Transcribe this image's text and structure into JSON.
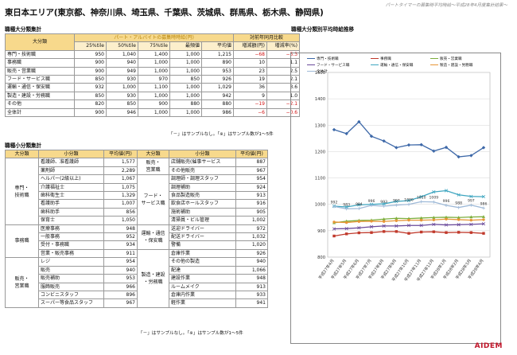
{
  "header": {
    "subtitle": "パートタイマーの募集時平均時給～平成28年4月度集計結果～",
    "region_title": "東日本エリア(東京都、神奈川県、埼玉県、千葉県、茨城県、群馬県、栃木県、静岡県)"
  },
  "large_table": {
    "section_title": "職種大分類集計",
    "h_category": "大分類",
    "h_wage_group": "パート・アルバイトの募集時時給(円)",
    "h_yoy_group": "対前年同月比較",
    "sub_headers": [
      "25%tile",
      "50%tile",
      "75%tile",
      "最頻値",
      "平均値",
      "増減額(円)",
      "増減率(%)"
    ],
    "rows": [
      {
        "name": "専門・技術職",
        "p25": "950",
        "p50": "1,040",
        "p75": "1,400",
        "mode": "1,000",
        "avg": "1,215",
        "diff": "−68",
        "rate": "−5.3"
      },
      {
        "name": "事務職",
        "p25": "900",
        "p50": "940",
        "p75": "1,000",
        "mode": "1,000",
        "avg": "890",
        "diff": "10",
        "rate": "1.1"
      },
      {
        "name": "販売・営業職",
        "p25": "900",
        "p50": "949",
        "p75": "1,000",
        "mode": "1,000",
        "avg": "953",
        "diff": "23",
        "rate": "2.5"
      },
      {
        "name": "フード・サービス職",
        "p25": "850",
        "p50": "930",
        "p75": "970",
        "mode": "850",
        "avg": "926",
        "diff": "19",
        "rate": "2.1"
      },
      {
        "name": "運輸・通信・保安職",
        "p25": "932",
        "p50": "1,000",
        "p75": "1,100",
        "mode": "1,000",
        "avg": "1,029",
        "diff": "36",
        "rate": "3.6"
      },
      {
        "name": "製造・建設・労務職",
        "p25": "850",
        "p50": "930",
        "p75": "1,000",
        "mode": "1,000",
        "avg": "942",
        "diff": "9",
        "rate": "1.0"
      },
      {
        "name": "その他",
        "p25": "820",
        "p50": "850",
        "p75": "900",
        "mode": "880",
        "avg": "880",
        "diff": "−19",
        "rate": "−2.1"
      },
      {
        "name": "全体計",
        "p25": "900",
        "p50": "946",
        "p75": "1,000",
        "mode": "1,000",
        "avg": "986",
        "diff": "−6",
        "rate": "−0.6"
      }
    ],
    "note": "「－」はサンプルなし。「※」はサンプル数が1～5件"
  },
  "small_table": {
    "section_title": "職種小分類集計",
    "h_large": "大分類",
    "h_small": "小分類",
    "h_avg": "平均値(円)",
    "left_groups": [
      {
        "name": "専門・\n技術職",
        "items": [
          {
            "name": "看護師、准看護師",
            "avg": "1,577"
          },
          {
            "name": "薬剤師",
            "avg": "2,289"
          },
          {
            "name": "ヘルパー(2級以上)",
            "avg": "1,067"
          },
          {
            "name": "介護福祉士",
            "avg": "1,075"
          },
          {
            "name": "歯科衛生士",
            "avg": "1,329"
          },
          {
            "name": "看護助手",
            "avg": "1,007"
          },
          {
            "name": "歯科助手",
            "avg": "856"
          },
          {
            "name": "保育士",
            "avg": "1,050"
          }
        ]
      },
      {
        "name": "事務職",
        "items": [
          {
            "name": "医療事務",
            "avg": "948"
          },
          {
            "name": "一般事務",
            "avg": "952"
          },
          {
            "name": "受付・事務職",
            "avg": "934"
          },
          {
            "name": "営業・販売事務",
            "avg": "911"
          }
        ]
      },
      {
        "name": "販売・\n営業職",
        "items": [
          {
            "name": "レジ",
            "avg": "954"
          },
          {
            "name": "販売",
            "avg": "940"
          },
          {
            "name": "販売補助",
            "avg": "953"
          },
          {
            "name": "服飾販売",
            "avg": "966"
          },
          {
            "name": "コンビニスタッフ",
            "avg": "896"
          },
          {
            "name": "スーパー等食品スタッフ",
            "avg": "967"
          }
        ]
      }
    ],
    "right_groups": [
      {
        "name": "販売・\n営業職",
        "items": [
          {
            "name": "店舗販売(催事サービス",
            "avg": "887"
          },
          {
            "name": "その他販売",
            "avg": "967"
          }
        ]
      },
      {
        "name": "フード・\nサービス職",
        "items": [
          {
            "name": "調理師・調理スタッフ",
            "avg": "954"
          },
          {
            "name": "調理補助",
            "avg": "924"
          },
          {
            "name": "食品製造販売",
            "avg": "913"
          },
          {
            "name": "飲食店ホールスタッフ",
            "avg": "916"
          },
          {
            "name": "施術補助",
            "avg": "905"
          },
          {
            "name": "清掃員・ビル管理",
            "avg": "1,002"
          }
        ]
      },
      {
        "name": "運輸・通信\n・保安職",
        "items": [
          {
            "name": "送迎ドライバー",
            "avg": "972"
          },
          {
            "name": "配送ドライバー",
            "avg": "1,032"
          },
          {
            "name": "警備",
            "avg": "1,020"
          }
        ]
      },
      {
        "name": "製造・建設\n・労務職",
        "items": [
          {
            "name": "倉庫作業",
            "avg": "926"
          },
          {
            "name": "その他の製造",
            "avg": "940"
          },
          {
            "name": "配達",
            "avg": "1,066"
          },
          {
            "name": "建設作業",
            "avg": "948"
          },
          {
            "name": "ルームメイク",
            "avg": "913"
          },
          {
            "name": "倉庫内作業",
            "avg": "933"
          },
          {
            "name": "軽作業",
            "avg": "941"
          }
        ]
      }
    ],
    "note": "「－」はサンプルなし。「※」はサンプル数が1～5件"
  },
  "chart_section_title": "職種大分類別平均時給推移",
  "logo": "AIDEM",
  "chart_data": {
    "type": "line",
    "categories": [
      "平成27年4月",
      "平成27年5月",
      "平成27年6月",
      "平成27年7月",
      "平成27年8月",
      "平成27年9月",
      "平成27年10月",
      "平成27年11月",
      "平成27年12月",
      "平成28年1月",
      "平成28年2月",
      "平成28年3月",
      "平成28年4月"
    ],
    "ylim": [
      800,
      1500
    ],
    "yticks": [
      800,
      900,
      1000,
      1100,
      1200,
      1300,
      1400,
      1500
    ],
    "series": [
      {
        "name": "専門・技術職",
        "color": "#3d68a8",
        "marker": "diamond",
        "values": [
          1283,
          1268,
          1313,
          1258,
          1240,
          1215,
          1225,
          1226,
          1202,
          1216,
          1180,
          1185,
          1215
        ]
      },
      {
        "name": "事務職",
        "color": "#c0392b",
        "marker": "square",
        "values": [
          880,
          888,
          892,
          893,
          897,
          897,
          890,
          895,
          896,
          893,
          894,
          893,
          890
        ]
      },
      {
        "name": "販売・営業職",
        "color": "#7cae3c",
        "marker": "triangle",
        "values": [
          930,
          936,
          939,
          940,
          944,
          947,
          946,
          948,
          950,
          951,
          950,
          952,
          953
        ]
      },
      {
        "name": "フード・サービス職",
        "color": "#6a4a9a",
        "marker": "x",
        "values": [
          907,
          908,
          911,
          915,
          918,
          918,
          920,
          920,
          924,
          922,
          923,
          924,
          926
        ]
      },
      {
        "name": "運輸・通信・保安職",
        "color": "#3fa6c0",
        "marker": "x",
        "values": [
          993,
          990,
          998,
          1000,
          1002,
          1011,
          1014,
          1029,
          1047,
          1052,
          1036,
          1030,
          1029
        ]
      },
      {
        "name": "製造・建設・労務職",
        "color": "#e79536",
        "marker": "circle",
        "values": [
          933,
          931,
          935,
          936,
          935,
          938,
          940,
          940,
          941,
          944,
          942,
          940,
          942
        ]
      },
      {
        "name": "全体計",
        "color": "#9fbad8",
        "marker": "plus",
        "values": [
          992,
          983,
          984,
          996,
          993,
          997,
          1000,
          1010,
          1009,
          996,
          988,
          997,
          986
        ]
      }
    ],
    "data_labels": {
      "series": "全体計",
      "values": [
        "992",
        "983",
        "984",
        "996",
        "993",
        "997",
        "1000",
        "1010",
        "1009",
        "996",
        "988",
        "997",
        "986"
      ]
    }
  }
}
